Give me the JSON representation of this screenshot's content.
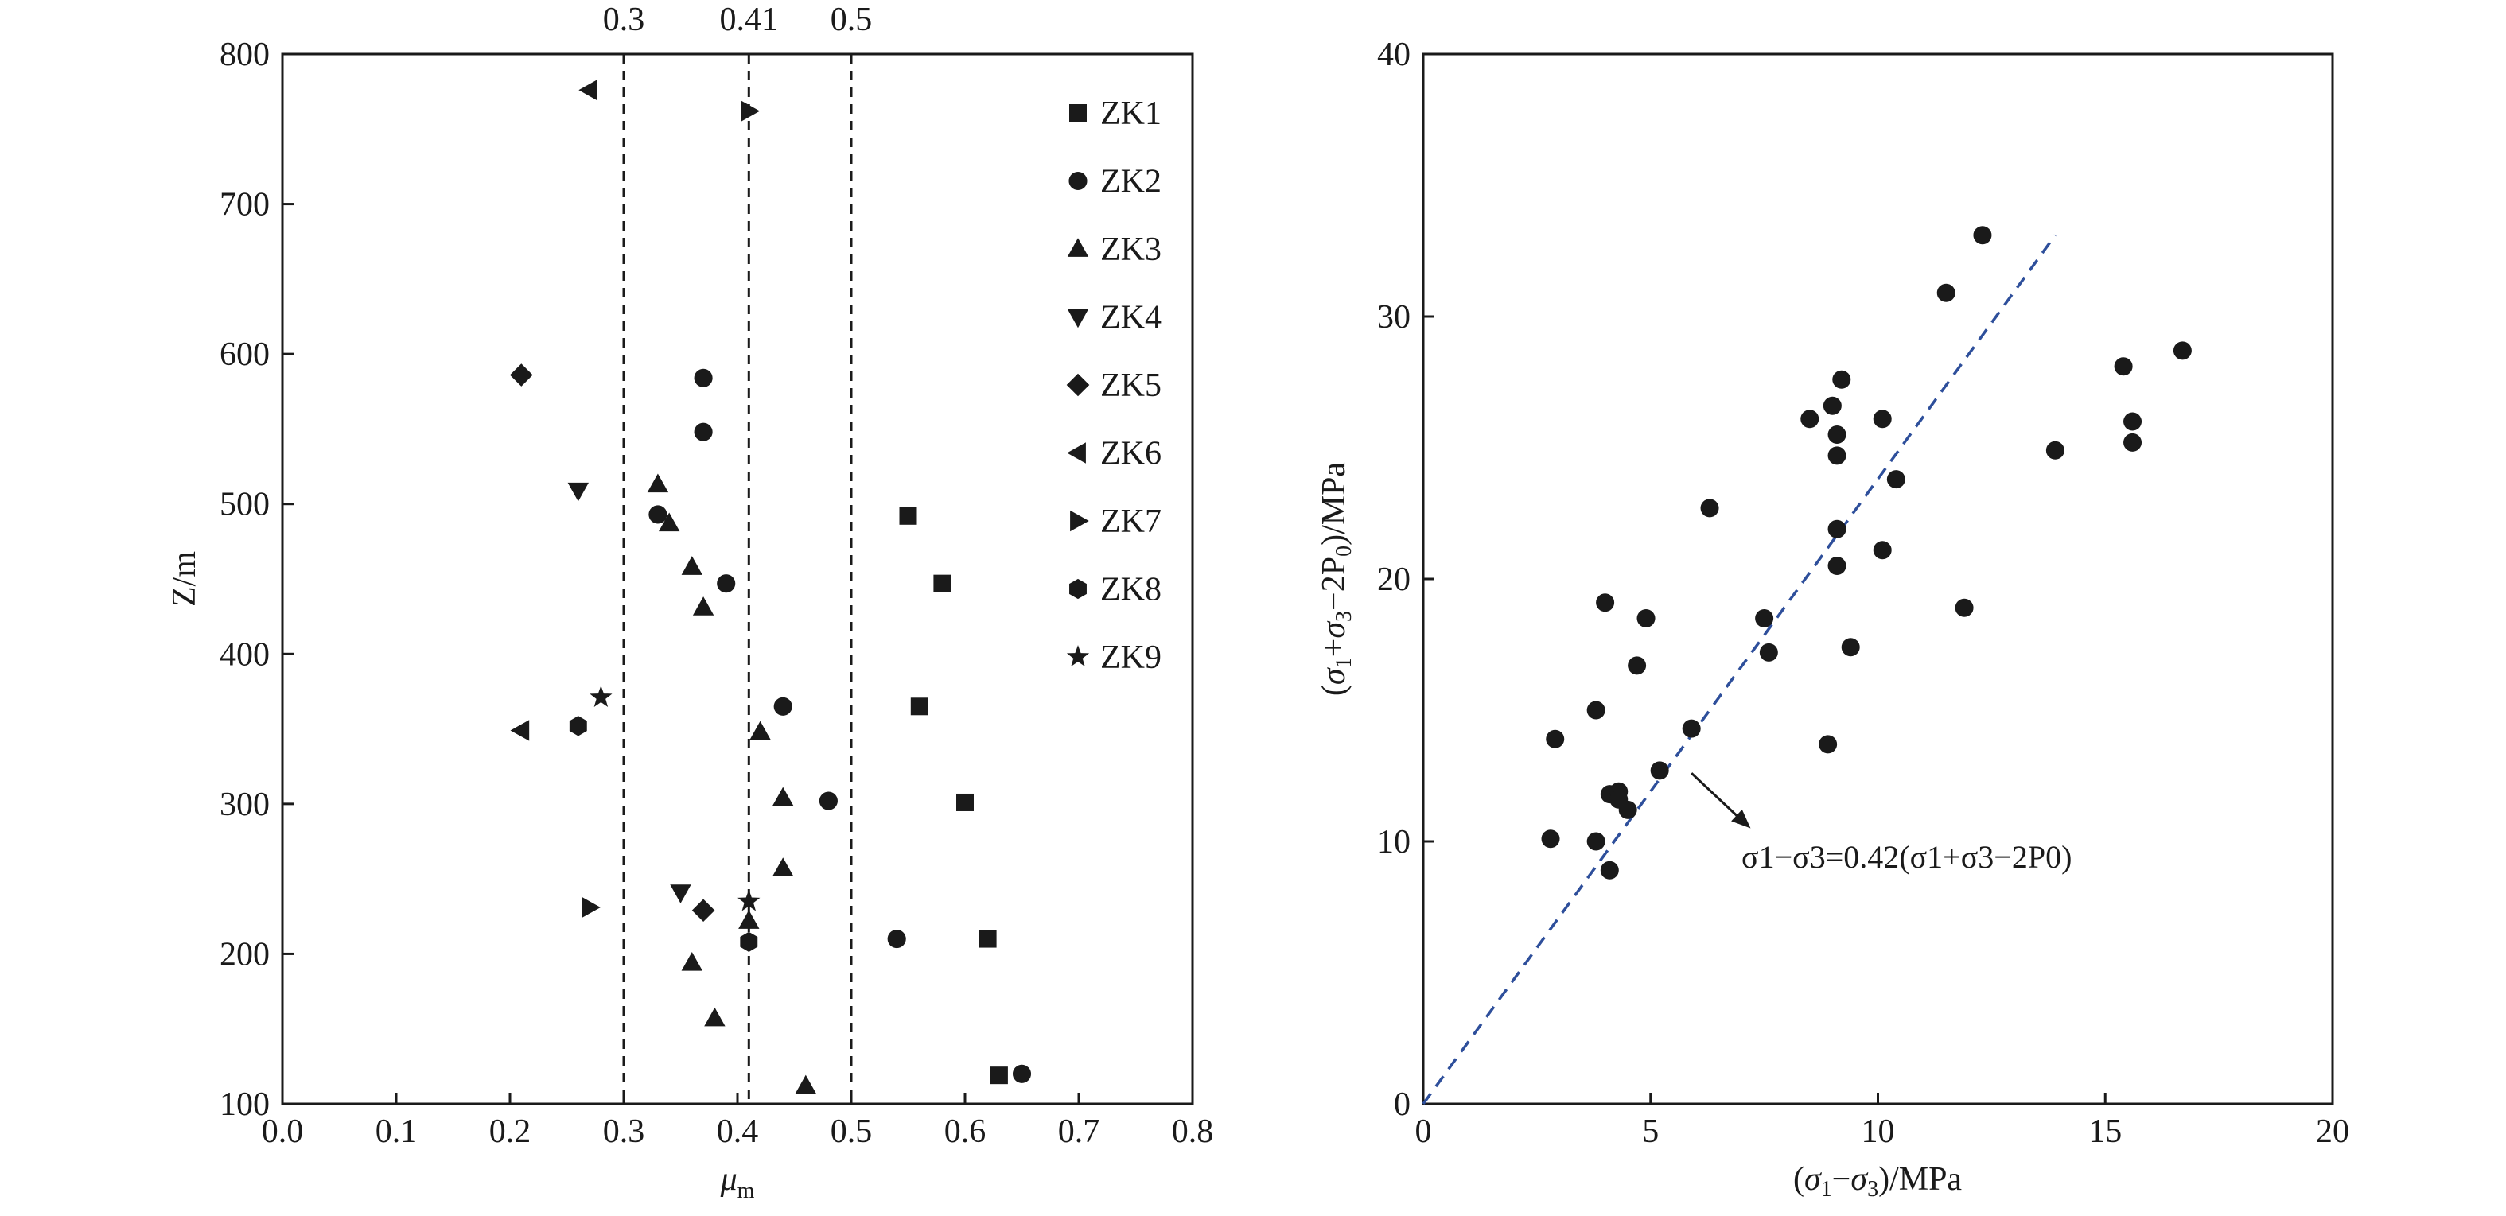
{
  "chart_data": [
    {
      "type": "scatter",
      "xlabel": "μm",
      "ylabel": "Z/m",
      "xlim": [
        0.0,
        0.8
      ],
      "ylim": [
        100,
        800
      ],
      "x_ticks": [
        "0.0",
        "0.1",
        "0.2",
        "0.3",
        "0.4",
        "0.5",
        "0.6",
        "0.7",
        "0.8"
      ],
      "y_ticks": [
        "100",
        "200",
        "300",
        "400",
        "500",
        "600",
        "700",
        "800"
      ],
      "reference_lines": [
        {
          "x": 0.3,
          "label": "0.3",
          "style": "dashed"
        },
        {
          "x": 0.41,
          "label": "0.41",
          "style": "dashed"
        },
        {
          "x": 0.5,
          "label": "0.5",
          "style": "dashed"
        }
      ],
      "legend_position": "top-right",
      "series": [
        {
          "name": "ZK1",
          "marker": "square",
          "points": [
            [
              0.55,
              492
            ],
            [
              0.58,
              447
            ],
            [
              0.56,
              365
            ],
            [
              0.6,
              301
            ],
            [
              0.62,
              210
            ],
            [
              0.63,
              119
            ]
          ]
        },
        {
          "name": "ZK2",
          "marker": "circle",
          "points": [
            [
              0.37,
              584
            ],
            [
              0.37,
              548
            ],
            [
              0.33,
              493
            ],
            [
              0.39,
              447
            ],
            [
              0.44,
              365
            ],
            [
              0.48,
              302
            ],
            [
              0.54,
              210
            ],
            [
              0.65,
              120
            ]
          ]
        },
        {
          "name": "ZK3",
          "marker": "triangle-up",
          "points": [
            [
              0.33,
              513
            ],
            [
              0.34,
              487
            ],
            [
              0.36,
              458
            ],
            [
              0.37,
              431
            ],
            [
              0.42,
              348
            ],
            [
              0.44,
              304
            ],
            [
              0.44,
              257
            ],
            [
              0.41,
              222
            ],
            [
              0.36,
              194
            ],
            [
              0.38,
              157
            ],
            [
              0.46,
              112
            ]
          ]
        },
        {
          "name": "ZK4",
          "marker": "triangle-down",
          "points": [
            [
              0.26,
              509
            ],
            [
              0.35,
              241
            ]
          ]
        },
        {
          "name": "ZK5",
          "marker": "diamond",
          "points": [
            [
              0.21,
              586
            ],
            [
              0.37,
              229
            ]
          ]
        },
        {
          "name": "ZK6",
          "marker": "triangle-left",
          "points": [
            [
              0.27,
              776
            ],
            [
              0.21,
              349
            ]
          ]
        },
        {
          "name": "ZK7",
          "marker": "triangle-right",
          "points": [
            [
              0.41,
              762
            ],
            [
              0.27,
              231
            ]
          ]
        },
        {
          "name": "ZK8",
          "marker": "hexagon",
          "points": [
            [
              0.26,
              352
            ],
            [
              0.41,
              208
            ]
          ]
        },
        {
          "name": "ZK9",
          "marker": "star",
          "points": [
            [
              0.28,
              371
            ],
            [
              0.41,
              235
            ]
          ]
        }
      ]
    },
    {
      "type": "scatter",
      "xlabel": "(σ1−σ3)/MPa",
      "ylabel": "(σ1+σ3−2P0)/MPa",
      "xlim": [
        0,
        20
      ],
      "ylim": [
        0,
        40
      ],
      "x_ticks": [
        "0",
        "5",
        "10",
        "15",
        "20"
      ],
      "y_ticks": [
        "0",
        "10",
        "20",
        "30",
        "40"
      ],
      "fit_line": {
        "equation": "σ1−σ3=0.42(σ1+σ3−2P0)",
        "slope_y_per_x": 2.381,
        "x_range": [
          0,
          13.9
        ],
        "style": "dashed",
        "color": "#2e4f9b"
      },
      "points": [
        [
          2.8,
          10.1
        ],
        [
          2.9,
          13.9
        ],
        [
          3.8,
          10.0
        ],
        [
          3.8,
          15.0
        ],
        [
          4.0,
          19.1
        ],
        [
          4.1,
          8.9
        ],
        [
          4.1,
          11.8
        ],
        [
          4.3,
          11.9
        ],
        [
          4.3,
          11.6
        ],
        [
          4.5,
          11.2
        ],
        [
          4.7,
          16.7
        ],
        [
          4.9,
          18.5
        ],
        [
          5.2,
          12.7
        ],
        [
          5.9,
          14.3
        ],
        [
          6.3,
          22.7
        ],
        [
          7.5,
          18.5
        ],
        [
          7.6,
          17.2
        ],
        [
          8.5,
          26.1
        ],
        [
          8.9,
          13.7
        ],
        [
          9.0,
          26.6
        ],
        [
          9.1,
          25.5
        ],
        [
          9.1,
          24.7
        ],
        [
          9.1,
          21.9
        ],
        [
          9.1,
          20.5
        ],
        [
          9.2,
          27.6
        ],
        [
          9.4,
          17.4
        ],
        [
          10.1,
          26.1
        ],
        [
          10.1,
          21.1
        ],
        [
          10.4,
          23.8
        ],
        [
          11.5,
          30.9
        ],
        [
          11.9,
          18.9
        ],
        [
          12.3,
          33.1
        ],
        [
          13.9,
          24.9
        ],
        [
          15.4,
          28.1
        ],
        [
          15.6,
          26.0
        ],
        [
          15.6,
          25.2
        ],
        [
          16.7,
          28.7
        ]
      ]
    }
  ]
}
